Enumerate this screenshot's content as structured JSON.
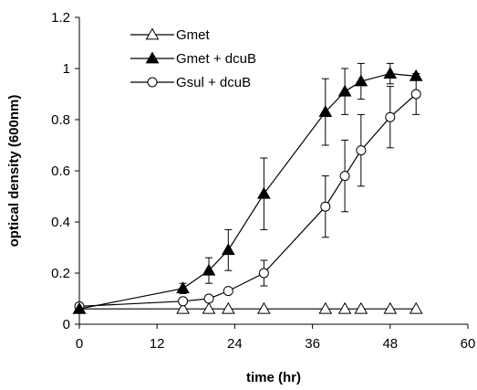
{
  "chart_data": {
    "type": "line",
    "title": "",
    "xlabel": "time (hr)",
    "ylabel": "optical density (600nm)",
    "xlim": [
      0,
      60
    ],
    "ylim": [
      0,
      1.2
    ],
    "xticks": [
      "0",
      "12",
      "24",
      "36",
      "48",
      "60"
    ],
    "yticks": [
      "0",
      "0.2",
      "0.4",
      "0.6",
      "0.8",
      "1",
      "1.2"
    ],
    "grid": false,
    "legend_position": "top-left",
    "series": [
      {
        "name": "Gmet",
        "marker": "open-triangle",
        "color": "#000000",
        "x": [
          0,
          16,
          20,
          23,
          28.5,
          38,
          41,
          43.5,
          48,
          52
        ],
        "y": [
          0.06,
          0.06,
          0.06,
          0.06,
          0.06,
          0.06,
          0.06,
          0.06,
          0.06,
          0.06
        ]
      },
      {
        "name": "Gmet + dcuB",
        "marker": "filled-triangle",
        "color": "#000000",
        "x": [
          0,
          16,
          20,
          23,
          28.5,
          38,
          41,
          43.5,
          48,
          52
        ],
        "y": [
          0.06,
          0.14,
          0.21,
          0.29,
          0.51,
          0.83,
          0.91,
          0.95,
          0.98,
          0.97
        ],
        "err": [
          0,
          0.02,
          0.05,
          0.08,
          0.14,
          0.13,
          0.09,
          0.07,
          0.04,
          0.01
        ]
      },
      {
        "name": "Gsul + dcuB",
        "marker": "open-circle",
        "color": "#000000",
        "x": [
          0,
          16,
          20,
          23,
          28.5,
          38,
          41,
          43.5,
          48,
          52
        ],
        "y": [
          0.07,
          0.09,
          0.1,
          0.13,
          0.2,
          0.46,
          0.58,
          0.68,
          0.81,
          0.9
        ],
        "err": [
          0,
          0,
          0,
          0,
          0.05,
          0.12,
          0.14,
          0.14,
          0.12,
          0.08
        ]
      }
    ]
  }
}
